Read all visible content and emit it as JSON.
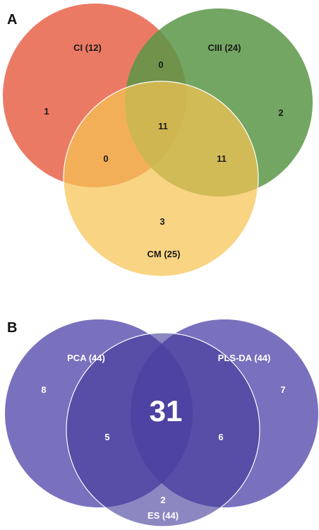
{
  "panel_a": {
    "label": "A",
    "sets": [
      {
        "key": "ci",
        "name": "CI (12)",
        "color": "#e8634a"
      },
      {
        "key": "ciii",
        "name": "CIII (24)",
        "color": "#5a9646"
      },
      {
        "key": "cm",
        "name": "CM (25)",
        "color": "#f5c453"
      }
    ],
    "regions": {
      "ci_only": "1",
      "ciii_only": "2",
      "cm_only": "3",
      "ci_ciii": "0",
      "ci_cm": "0",
      "ciii_cm": "11",
      "all": "11"
    }
  },
  "panel_b": {
    "label": "B",
    "sets": [
      {
        "key": "pca",
        "name": "PCA (44)",
        "color": "#5b50b0"
      },
      {
        "key": "plsda",
        "name": "PLS-DA (44)",
        "color": "#5b50b0"
      },
      {
        "key": "es",
        "name": "ES (44)",
        "color": "#3f3797"
      }
    ],
    "regions": {
      "pca_only": "8",
      "plsda_only": "7",
      "es_only": "2",
      "pca_es": "5",
      "plsda_es": "6",
      "all": "31"
    }
  }
}
